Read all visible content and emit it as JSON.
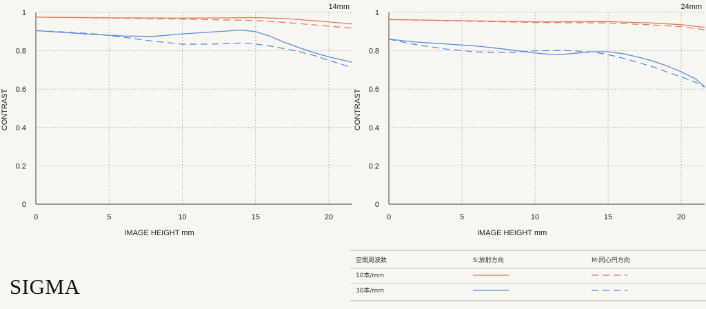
{
  "chart_data": [
    {
      "type": "line",
      "focal_label": "14mm",
      "xlabel": "IMAGE HEIGHT  mm",
      "ylabel": "CONTRAST",
      "xlim": [
        0,
        21.6
      ],
      "ylim": [
        0,
        1
      ],
      "xticks": [
        0,
        5,
        10,
        15,
        20
      ],
      "yticks": [
        0,
        0.2,
        0.4,
        0.6,
        0.8,
        1
      ],
      "grid": true,
      "series": [
        {
          "legend": "10S",
          "x": [
            0,
            5,
            10,
            15,
            17,
            19,
            21.6
          ],
          "values": [
            0.975,
            0.972,
            0.97,
            0.973,
            0.968,
            0.957,
            0.94
          ]
        },
        {
          "legend": "10M",
          "x": [
            0,
            5,
            10,
            15,
            17,
            19,
            21.6
          ],
          "values": [
            0.975,
            0.971,
            0.965,
            0.958,
            0.948,
            0.935,
            0.918
          ]
        },
        {
          "legend": "30S",
          "x": [
            0,
            2,
            4,
            6,
            8,
            10,
            12,
            14,
            15,
            16,
            17,
            18,
            19,
            20,
            21.6
          ],
          "values": [
            0.905,
            0.895,
            0.885,
            0.877,
            0.875,
            0.888,
            0.898,
            0.908,
            0.9,
            0.875,
            0.843,
            0.815,
            0.79,
            0.768,
            0.74
          ]
        },
        {
          "legend": "30M",
          "x": [
            0,
            2,
            4,
            6,
            8,
            10,
            12,
            14,
            15,
            16,
            17,
            18,
            19,
            20,
            21.6
          ],
          "values": [
            0.905,
            0.898,
            0.888,
            0.87,
            0.85,
            0.834,
            0.835,
            0.84,
            0.835,
            0.825,
            0.81,
            0.795,
            0.775,
            0.75,
            0.712
          ]
        }
      ]
    },
    {
      "type": "line",
      "focal_label": "24mm",
      "xlabel": "IMAGE HEIGHT  mm",
      "ylabel": "CONTRAST",
      "xlim": [
        0,
        21.6
      ],
      "ylim": [
        0,
        1
      ],
      "xticks": [
        0,
        5,
        10,
        15,
        20
      ],
      "yticks": [
        0,
        0.2,
        0.4,
        0.6,
        0.8,
        1
      ],
      "grid": true,
      "series": [
        {
          "legend": "10S",
          "x": [
            0,
            5,
            10,
            15,
            18,
            20,
            21.6
          ],
          "values": [
            0.963,
            0.957,
            0.951,
            0.952,
            0.945,
            0.936,
            0.922
          ]
        },
        {
          "legend": "10M",
          "x": [
            0,
            5,
            10,
            15,
            18,
            20,
            21.6
          ],
          "values": [
            0.963,
            0.955,
            0.948,
            0.945,
            0.935,
            0.925,
            0.91
          ]
        },
        {
          "legend": "30S",
          "x": [
            0,
            2,
            4,
            6,
            8,
            10,
            11,
            12,
            13,
            14,
            15,
            16,
            17,
            18,
            19,
            20,
            21,
            21.6
          ],
          "values": [
            0.86,
            0.845,
            0.835,
            0.825,
            0.808,
            0.788,
            0.782,
            0.782,
            0.788,
            0.795,
            0.795,
            0.785,
            0.768,
            0.748,
            0.722,
            0.69,
            0.652,
            0.612
          ]
        },
        {
          "legend": "30M",
          "x": [
            0,
            2,
            4,
            6,
            8,
            10,
            12,
            14,
            15,
            16,
            17,
            18,
            19,
            20,
            21,
            21.6
          ],
          "values": [
            0.86,
            0.83,
            0.808,
            0.794,
            0.79,
            0.8,
            0.802,
            0.793,
            0.78,
            0.762,
            0.74,
            0.718,
            0.69,
            0.664,
            0.635,
            0.61
          ]
        }
      ]
    }
  ],
  "series_style": {
    "10S": {
      "color": "#e37a5f",
      "dash": "none"
    },
    "10M": {
      "color": "#e37a5f",
      "dash": "10,6"
    },
    "30S": {
      "color": "#5a8de0",
      "dash": "none"
    },
    "30M": {
      "color": "#5a8de0",
      "dash": "10,6"
    }
  },
  "legend_table": {
    "header": [
      "空間周波数",
      "S:放射方向",
      "M:同心円方向"
    ],
    "rows": [
      {
        "label": "10本/mm",
        "s": "10S",
        "m": "10M"
      },
      {
        "label": "30本/mm",
        "s": "30S",
        "m": "30M"
      }
    ]
  },
  "brand": "SIGMA"
}
